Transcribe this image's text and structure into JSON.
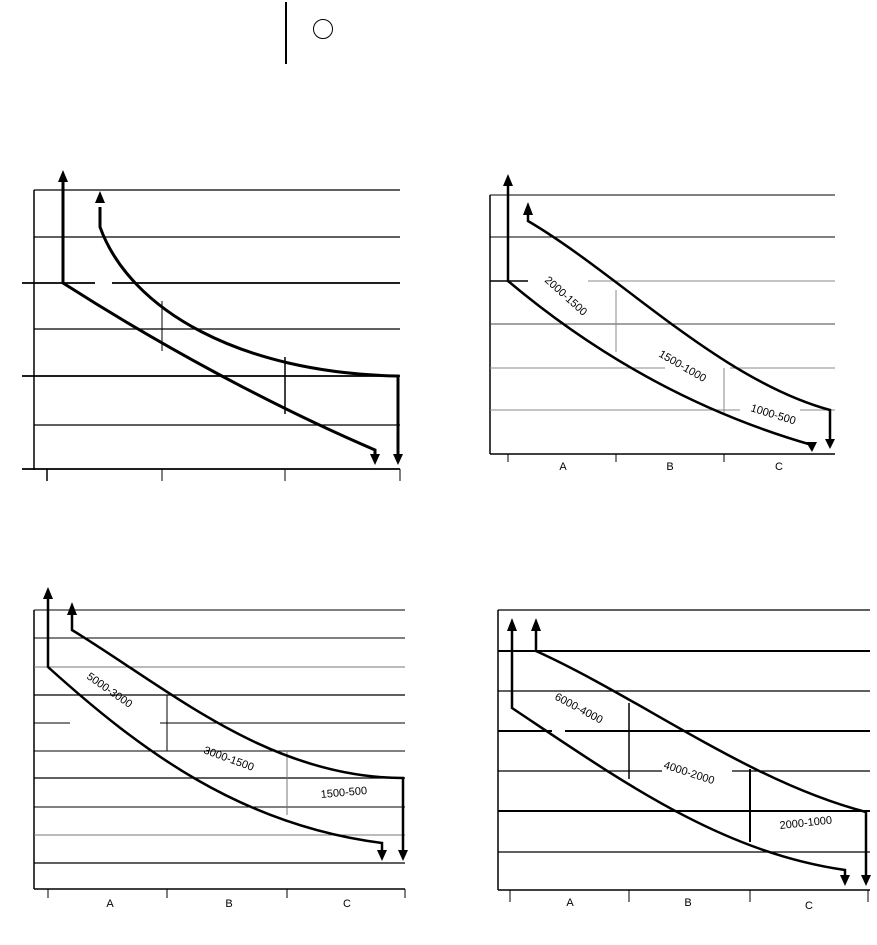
{
  "diagrams": [
    {
      "id": "top-left",
      "zone_labels": [],
      "range_labels": []
    },
    {
      "id": "top-right",
      "zone_labels": [
        "A",
        "B",
        "C"
      ],
      "range_labels": [
        "2000-1500",
        "1500-1000",
        "1000-500"
      ]
    },
    {
      "id": "bottom-left",
      "zone_labels": [
        "A",
        "B",
        "C"
      ],
      "range_labels": [
        "5000-3000",
        "3000-1500",
        "1500-500"
      ]
    },
    {
      "id": "bottom-right",
      "zone_labels": [
        "A",
        "B",
        "C"
      ],
      "range_labels": [
        "6000-4000",
        "4000-2000",
        "2000-1000"
      ]
    }
  ]
}
